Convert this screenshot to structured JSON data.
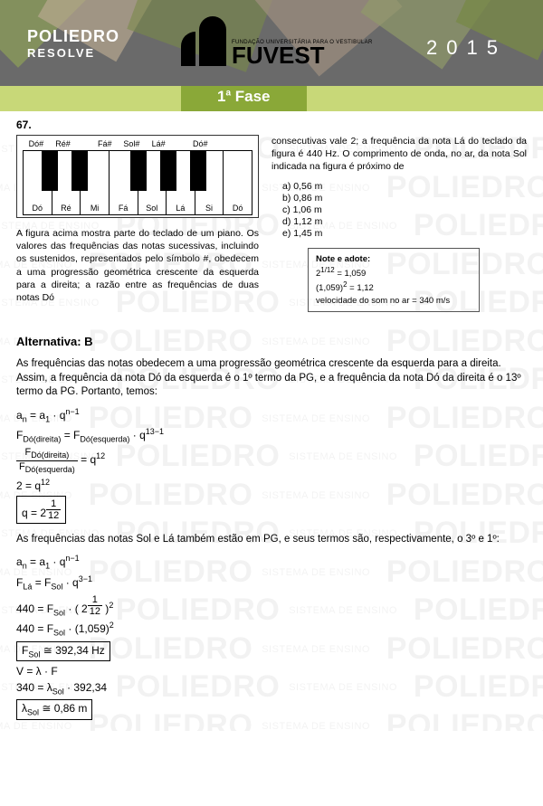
{
  "header": {
    "brand_line1": "POLIEDRO",
    "brand_line2": "RESOLVE",
    "fuvest_sub": "FUNDAÇÃO UNIVERSITÁRIA PARA O VESTIBULAR",
    "fuvest_main": "FUVEST",
    "year": "2015",
    "phase": "1ª Fase"
  },
  "colors": {
    "header_bg": "#6a6a6a",
    "phase_bar": "#c8d878",
    "phase_label": "#8aa838",
    "watermark": "rgba(0,0,0,0.05)"
  },
  "watermark": {
    "big": "POLIEDRO",
    "small": "SISTEMA DE ENSINO"
  },
  "question": {
    "number": "67.",
    "piano_top_labels": [
      "Dó#",
      "Ré#",
      "",
      "Fá#",
      "Sol#",
      "Lá#",
      "",
      "Dó#"
    ],
    "piano_white_labels": [
      "Dó",
      "Ré",
      "Mi",
      "Fá",
      "Sol",
      "Lá",
      "Si",
      "Dó"
    ],
    "black_key_positions_pct": [
      8,
      21,
      47,
      60,
      73
    ],
    "text_left": "A figura acima mostra parte do teclado de um piano. Os valores das frequências das notas sucessivas, incluindo os sustenidos, representados pelo símbolo #, obedecem a uma progressão geométrica crescente da esquerda para a direita; a razão entre as frequências de duas notas Dó",
    "text_right": "consecutivas vale 2; a frequência da nota Lá do teclado da figura é 440 Hz. O comprimento de onda, no ar, da nota Sol indicada na figura é próximo de",
    "options": [
      "a)  0,56 m",
      "b)  0,86 m",
      "c)  1,06 m",
      "d)  1,12 m",
      "e)  1,45 m"
    ],
    "note_box": {
      "title": "Note e adote:",
      "line1_a": "2",
      "line1_exp": "1/12",
      "line1_b": " = 1,059",
      "line2_a": "(1,059)",
      "line2_exp": "2",
      "line2_b": " = 1,12",
      "line3": "velocidade do som no ar = 340 m/s"
    }
  },
  "solution": {
    "alternative": "Alternativa: B",
    "intro": "As frequências das notas obedecem a uma progressão geométrica crescente da esquerda para a direita. Assim, a frequência da nota Dó da esquerda é o 1º termo da PG, e a frequência da nota Dó da direita é o 13º termo da PG. Portanto, temos:",
    "eq1": "aₙ = a₁ · qⁿ⁻¹",
    "eq5": "2 = q¹²",
    "mid_text": "As frequências das notas Sol e Lá também estão em PG, e seus termos são, respectivamente, o 3º e 1º:",
    "eq7": "aₙ = a₁ · qⁿ⁻¹",
    "eq10": "440 = F_Sol · (1,059)²",
    "eq11": "F_Sol ≅ 392,34 Hz",
    "eq12": "V = λ · F",
    "eq13": "340 = λ_Sol · 392,34",
    "eq14": "λ_Sol ≅ 0,86 m"
  }
}
